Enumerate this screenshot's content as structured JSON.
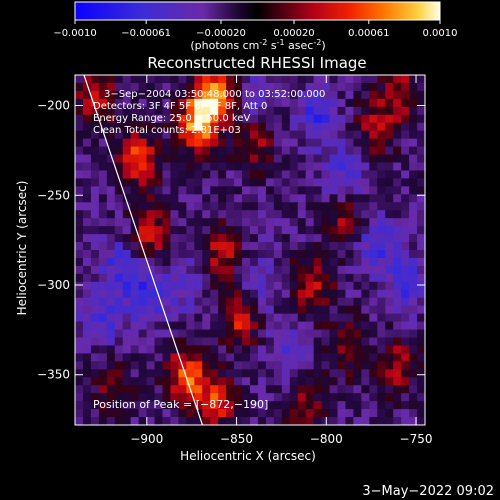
{
  "colors": {
    "background": "#000000",
    "text": "#ffffff",
    "limb": "#ffffff"
  },
  "colorbar": {
    "ticks": [
      "-0.0010",
      "-0.00061",
      "-0.00020",
      "0.00020",
      "0.00061",
      "0.0010"
    ],
    "min": -0.001,
    "max": 0.001,
    "units_main": "(photons cm",
    "units_exp1": "-2",
    "units_mid": " s",
    "units_exp2": "-1",
    "units_end": " asec",
    "units_exp3": "-2",
    "units_close": ")"
  },
  "chart_data": {
    "type": "heatmap",
    "title": "Reconstructed RHESSI Image",
    "xlabel": "Heliocentric X (arcsec)",
    "ylabel": "Heliocentric Y (arcsec)",
    "xlim": [
      -940,
      -745
    ],
    "ylim": [
      -378,
      -183
    ],
    "xticks": [
      -900,
      -850,
      -800,
      -750
    ],
    "yticks": [
      -200,
      -250,
      -300,
      -350
    ],
    "x_tick_labels": [
      "−900",
      "−850",
      "−800",
      "−750"
    ],
    "y_tick_labels": [
      "−200",
      "−250",
      "−300",
      "−350"
    ],
    "annotations": [
      "3−Sep−2004 03:50:48.000 to 03:52:00.000",
      "Detectors: 3F 4F 5F 6F 7F 8F, Att 0",
      "Energy Range: 25.0 − 50.0 keV",
      "Clean    Total counts: 2.81E+03"
    ],
    "peak_label": "Position of Peak = [−872,−190]",
    "peak": [
      -872,
      -190
    ],
    "limb_line": [
      [
        -935,
        -183
      ],
      [
        -869,
        -378
      ]
    ],
    "hot_spots": [
      {
        "x": -862,
        "y": -195,
        "v": 1.0
      },
      {
        "x": -872,
        "y": -210,
        "v": 0.9
      },
      {
        "x": -905,
        "y": -230,
        "v": 0.7
      },
      {
        "x": -928,
        "y": -195,
        "v": 0.55
      },
      {
        "x": -840,
        "y": -222,
        "v": 0.45
      },
      {
        "x": -898,
        "y": -272,
        "v": 0.55
      },
      {
        "x": -858,
        "y": -282,
        "v": 0.5
      },
      {
        "x": -848,
        "y": -318,
        "v": 0.6
      },
      {
        "x": -878,
        "y": -350,
        "v": 0.75
      },
      {
        "x": -862,
        "y": -365,
        "v": 0.65
      },
      {
        "x": -808,
        "y": -300,
        "v": 0.55
      },
      {
        "x": -790,
        "y": -262,
        "v": 0.45
      },
      {
        "x": -772,
        "y": -212,
        "v": 0.5
      },
      {
        "x": -758,
        "y": -192,
        "v": 0.45
      },
      {
        "x": -760,
        "y": -345,
        "v": 0.45
      },
      {
        "x": -790,
        "y": -335,
        "v": 0.35
      },
      {
        "x": -920,
        "y": -360,
        "v": 0.35
      },
      {
        "x": -812,
        "y": -365,
        "v": 0.4
      }
    ],
    "cold_spots": [
      {
        "x": -900,
        "y": -305,
        "v": -0.5
      },
      {
        "x": -915,
        "y": -290,
        "v": -0.4
      },
      {
        "x": -805,
        "y": -205,
        "v": -0.45
      },
      {
        "x": -790,
        "y": -240,
        "v": -0.4
      },
      {
        "x": -772,
        "y": -278,
        "v": -0.45
      },
      {
        "x": -755,
        "y": -300,
        "v": -0.4
      },
      {
        "x": -838,
        "y": -195,
        "v": -0.3
      },
      {
        "x": -838,
        "y": -300,
        "v": -0.35
      },
      {
        "x": -820,
        "y": -338,
        "v": -0.35
      },
      {
        "x": -925,
        "y": -318,
        "v": -0.4
      },
      {
        "x": -880,
        "y": -300,
        "v": -0.3
      }
    ]
  },
  "footer": {
    "timestamp": "3−May−2022 09:02"
  }
}
